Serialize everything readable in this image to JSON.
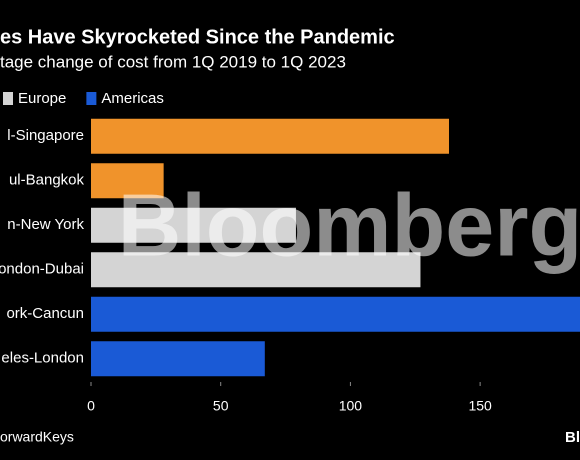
{
  "chart_data": {
    "type": "barh",
    "title": "es Have Skyrocketed Since the Pandemic",
    "subtitle": "tage change of cost from 1Q 2019 to 1Q 2023",
    "categories": [
      "l-Singapore",
      "ul-Bangkok",
      "n-New York",
      "ondon-Dubai",
      "ork-Cancun",
      "eles-London"
    ],
    "series": [
      {
        "color": "#f0932b",
        "values": [
          138,
          28,
          null,
          null,
          null,
          null
        ]
      },
      {
        "name": "Europe",
        "color": "#d4d4d4",
        "values": [
          null,
          null,
          79,
          127,
          null,
          null
        ]
      },
      {
        "name": "Americas",
        "color": "#1a5ad6",
        "values": [
          null,
          null,
          null,
          null,
          190,
          67
        ]
      }
    ],
    "xlim": [
      0,
      188.5
    ],
    "xticks": [
      0,
      50,
      100,
      150
    ],
    "source": "orwardKeys",
    "logo": "Bl",
    "watermark": "Bloomberg"
  }
}
